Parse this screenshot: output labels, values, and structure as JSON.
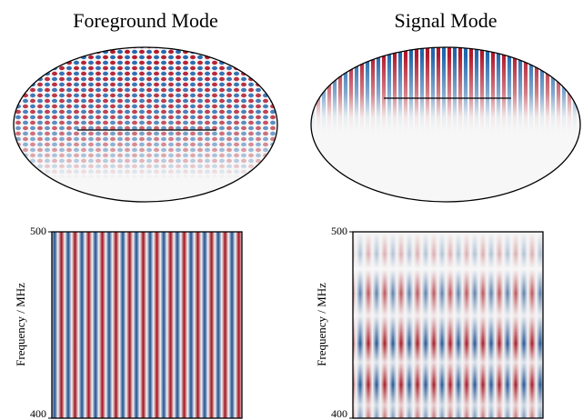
{
  "chart_data": [
    {
      "type": "map",
      "title": "Foreground Mode"
    },
    {
      "type": "map",
      "title": "Signal Mode"
    },
    {
      "type": "heatmap",
      "ylabel": "Frequency / MHz",
      "ylim": [
        400,
        500
      ],
      "yticks": [
        400,
        500
      ]
    },
    {
      "type": "heatmap",
      "ylabel": "Frequency / MHz",
      "ylim": [
        400,
        500
      ],
      "yticks": [
        400,
        500
      ]
    }
  ]
}
